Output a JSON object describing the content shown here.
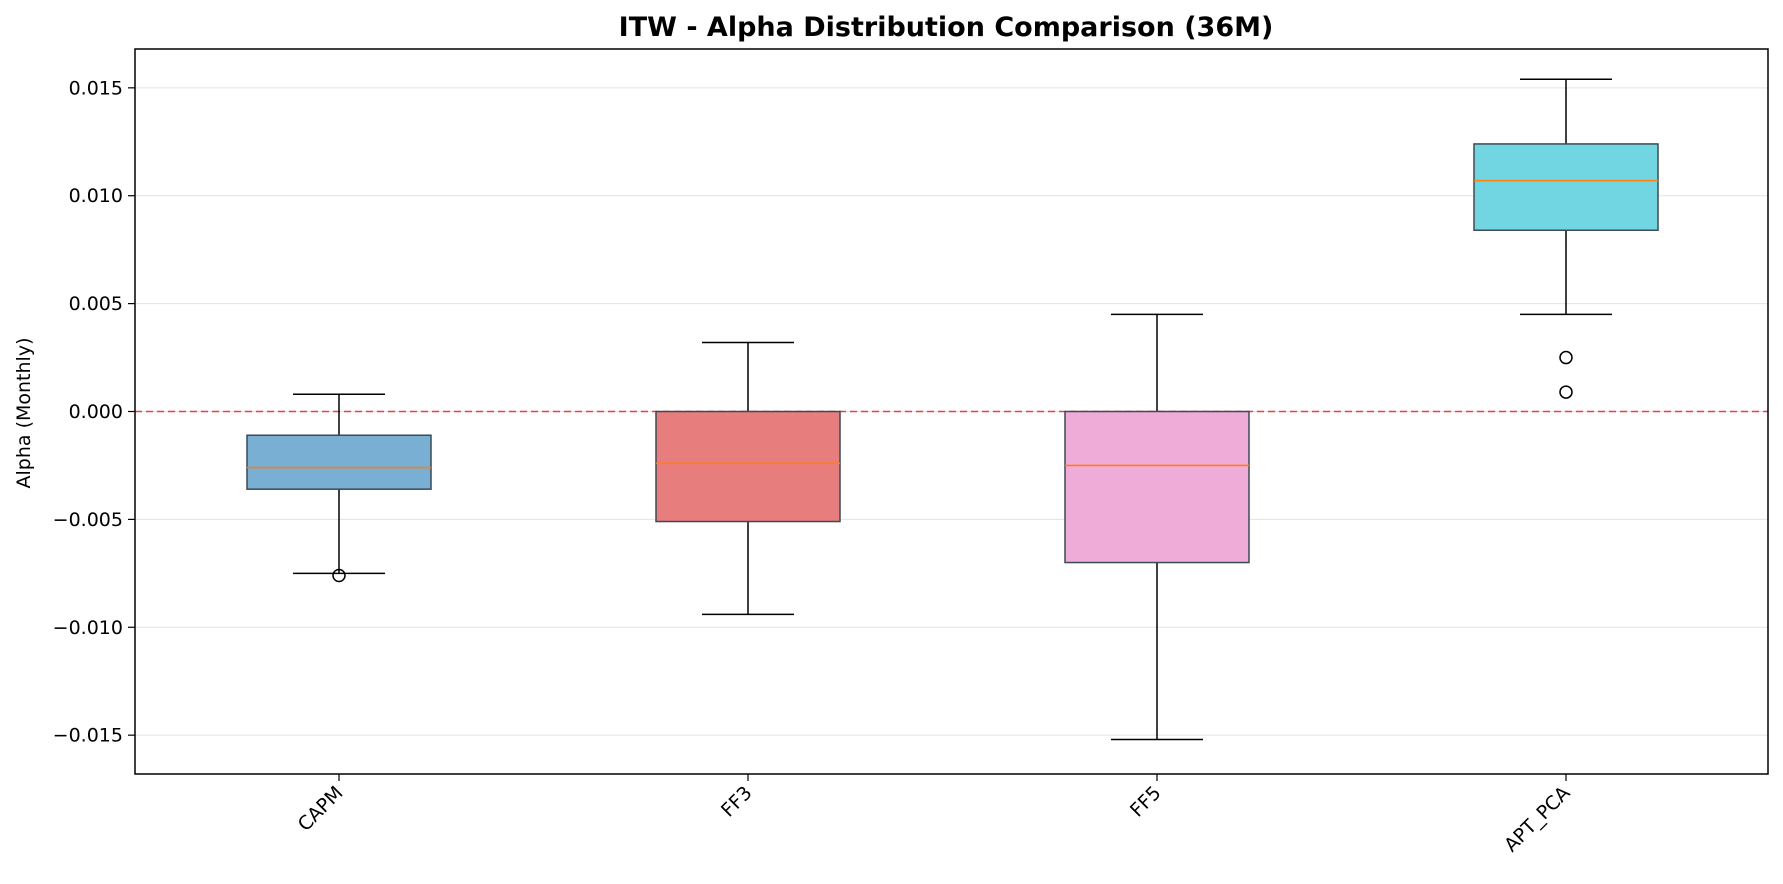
{
  "chart_data": {
    "type": "box",
    "title": "ITW - Alpha Distribution Comparison (36M)",
    "xlabel": "",
    "ylabel": "Alpha (Monthly)",
    "ylim": [
      -0.0168,
      0.0168
    ],
    "yticks": [
      -0.015,
      -0.01,
      -0.005,
      0.0,
      0.005,
      0.01,
      0.015
    ],
    "ytick_labels": [
      "−0.015",
      "−0.010",
      "−0.005",
      "0.000",
      "0.005",
      "0.010",
      "0.015"
    ],
    "grid": "y",
    "reference_line": {
      "y": 0.0,
      "style": "dashed",
      "color": "#e8404b"
    },
    "categories": [
      "CAPM",
      "FF3",
      "FF5",
      "APT_PCA"
    ],
    "boxes": [
      {
        "name": "CAPM",
        "whisker_low": -0.0075,
        "q1": -0.0036,
        "median": -0.0026,
        "q3": -0.0011,
        "whisker_high": 0.0008,
        "outliers": [
          -0.0076
        ],
        "color": "#7aafd4"
      },
      {
        "name": "FF3",
        "whisker_low": -0.0094,
        "q1": -0.0051,
        "median": -0.0024,
        "q3": 0.0,
        "whisker_high": 0.0032,
        "outliers": [],
        "color": "#e87d7e"
      },
      {
        "name": "FF5",
        "whisker_low": -0.0152,
        "q1": -0.007,
        "median": -0.0025,
        "q3": 0.0,
        "whisker_high": 0.0045,
        "outliers": [],
        "color": "#f0acd9"
      },
      {
        "name": "APT_PCA",
        "whisker_low": 0.0045,
        "q1": 0.0084,
        "median": 0.0107,
        "q3": 0.0124,
        "whisker_high": 0.0154,
        "outliers": [
          0.0025,
          0.0009
        ],
        "color": "#72d5e2"
      }
    ],
    "median_color": "#ff7f0e"
  }
}
